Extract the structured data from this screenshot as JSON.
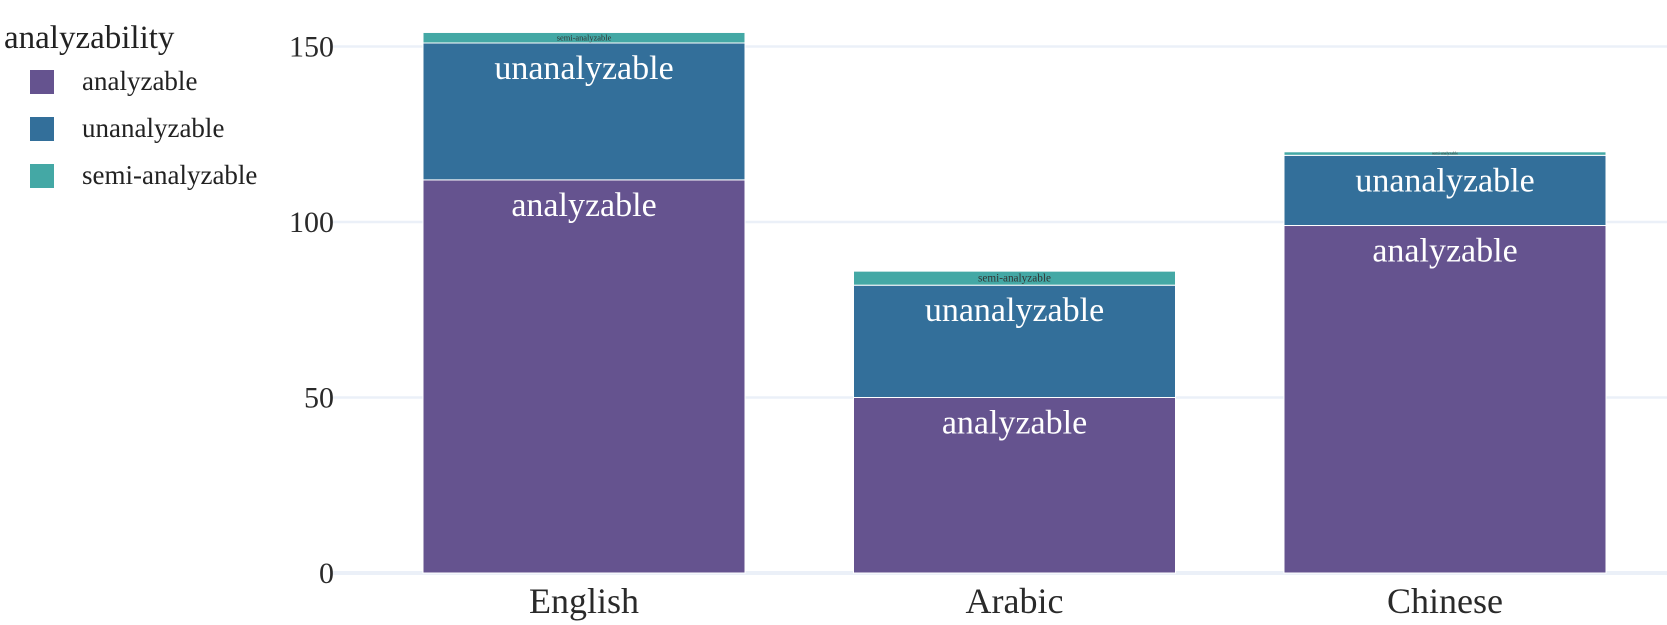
{
  "chart_data": {
    "type": "bar",
    "stacked": true,
    "categories": [
      "English",
      "Arabic",
      "Chinese"
    ],
    "series": [
      {
        "name": "analyzable",
        "values": [
          112,
          50,
          99
        ],
        "color": "#65538f"
      },
      {
        "name": "unanalyzable",
        "values": [
          39,
          32,
          20
        ],
        "color": "#336f9a"
      },
      {
        "name": "semi-analyzable",
        "values": [
          3,
          4,
          1
        ],
        "color": "#44a8a5"
      }
    ],
    "legend": {
      "title": "analyzability",
      "placement": "left"
    },
    "title": "",
    "xlabel": "",
    "ylabel": "",
    "ylim": [
      0,
      160
    ],
    "yticks": [
      0,
      50,
      100,
      150
    ],
    "grid": true
  }
}
